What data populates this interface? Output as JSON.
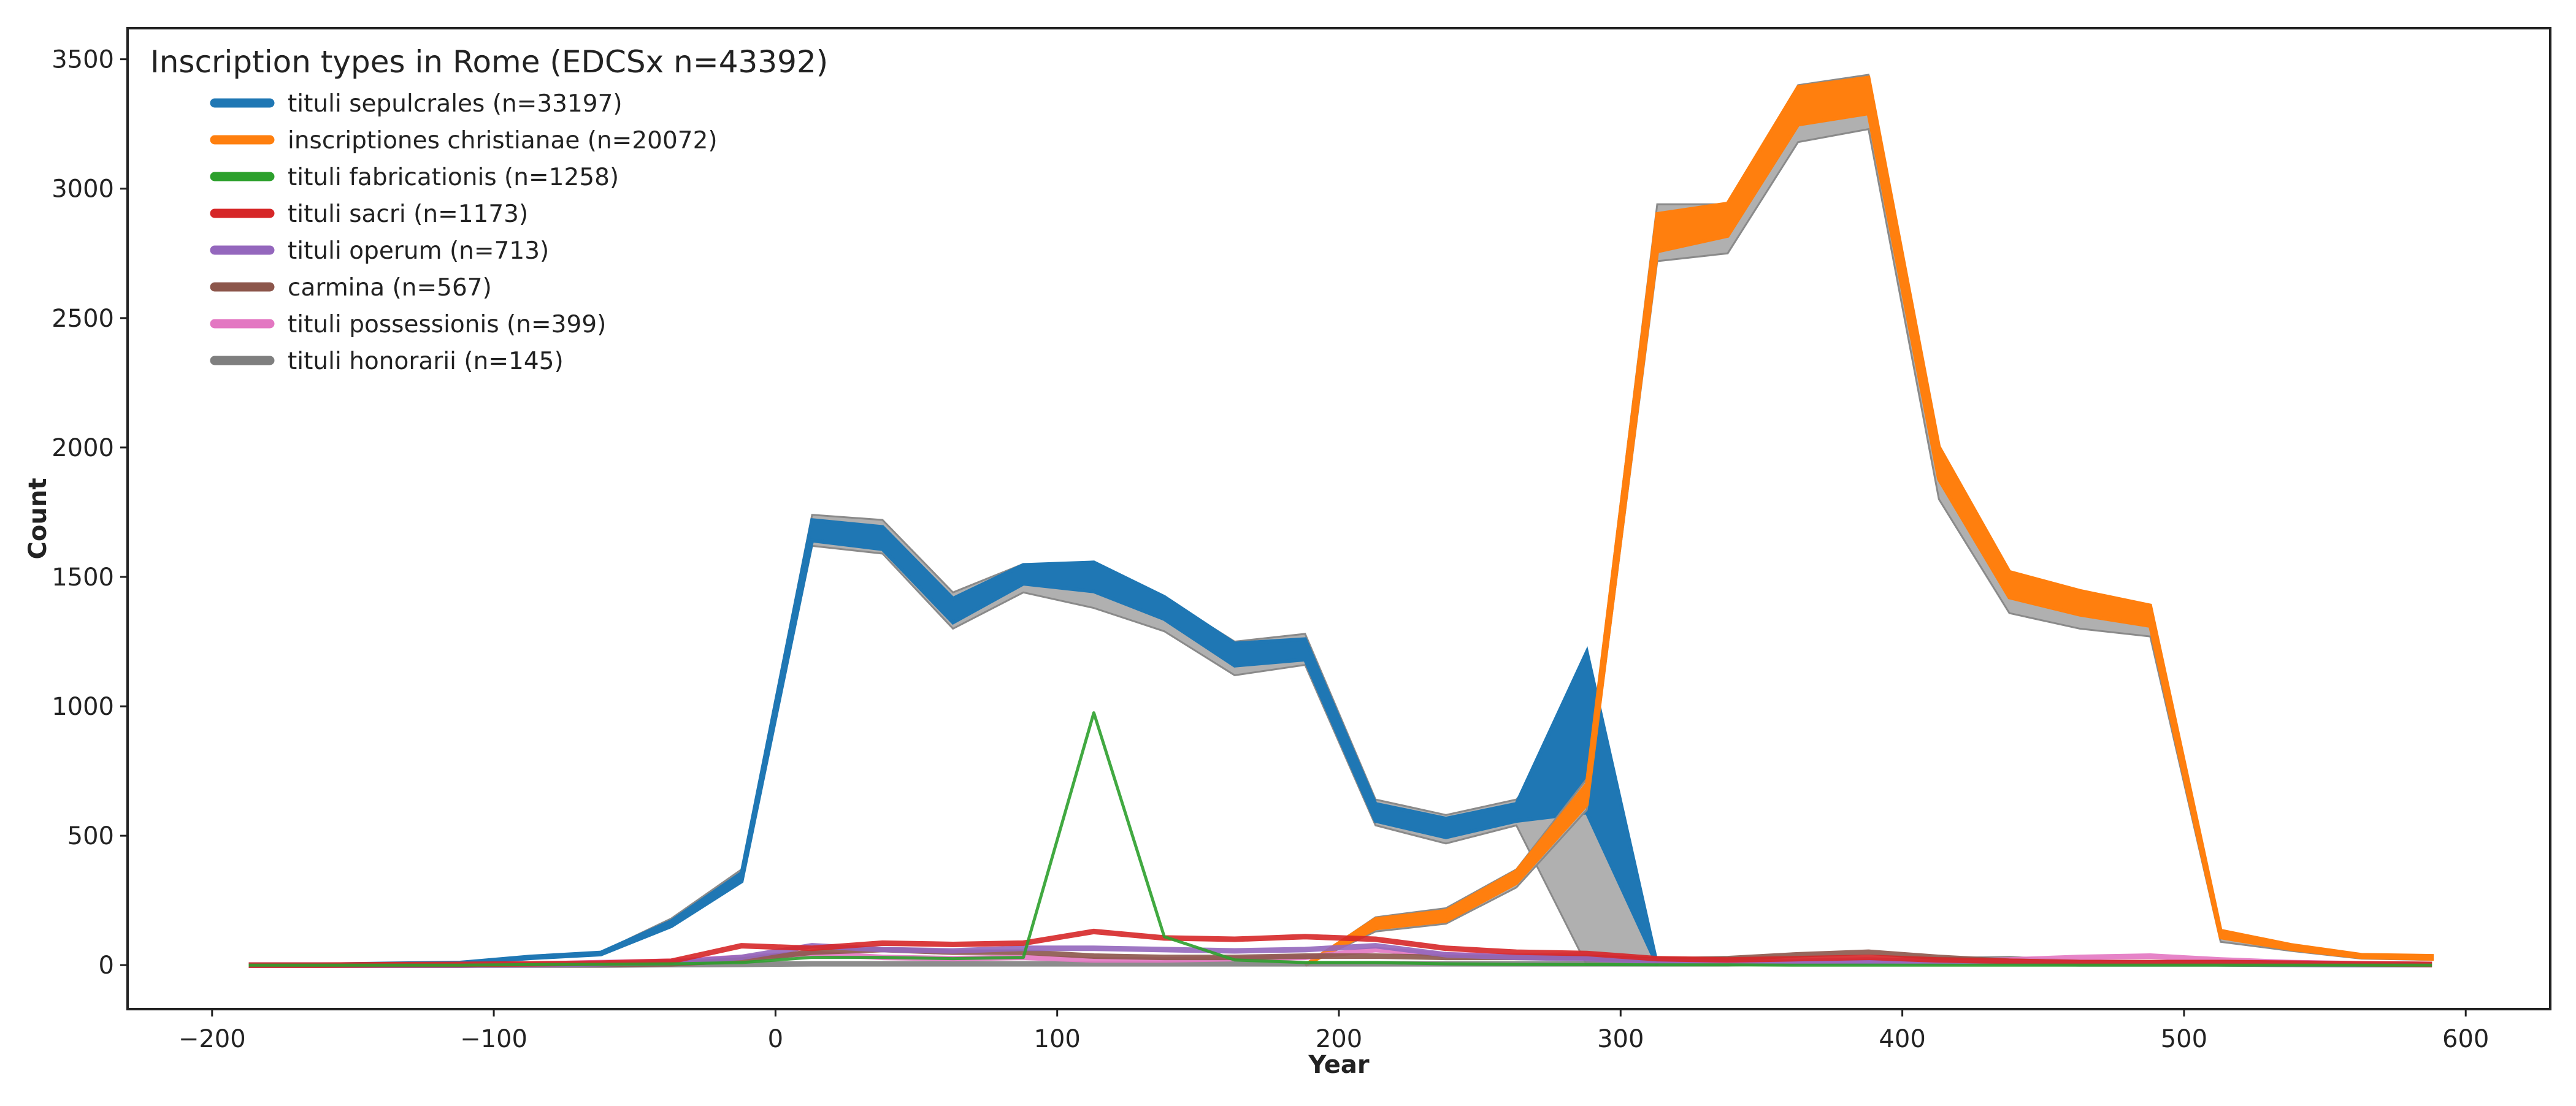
{
  "chart_data": {
    "type": "line",
    "title": "",
    "xlabel": "Year",
    "ylabel": "Count",
    "xlim": [
      -230,
      630
    ],
    "ylim": [
      -170,
      3620
    ],
    "xticks": [
      -200,
      -100,
      0,
      100,
      200,
      300,
      400,
      500,
      600
    ],
    "xtick_labels": [
      "−200",
      "−100",
      "0",
      "100",
      "200",
      "300",
      "400",
      "500",
      "600"
    ],
    "yticks": [
      0,
      500,
      1000,
      1500,
      2000,
      2500,
      3000,
      3500
    ],
    "ytick_labels": [
      "0",
      "500",
      "1000",
      "1500",
      "2000",
      "2500",
      "3000",
      "3500"
    ],
    "grid": false,
    "legend": {
      "title": "Inscription types in Rome (EDCSx n=43392)",
      "placement": "top-left"
    },
    "x": [
      -187,
      -162,
      -137,
      -112,
      -87,
      -62,
      -37,
      -12,
      13,
      38,
      63,
      88,
      113,
      138,
      163,
      188,
      213,
      238,
      263,
      288,
      313,
      338,
      363,
      388,
      413,
      438,
      463,
      488,
      513,
      538,
      563,
      588
    ],
    "series": [
      {
        "name": "tituli sepulcrales (n=33197)",
        "color": "#1f77b4",
        "style": "band",
        "values": [
          0,
          2,
          5,
          8,
          30,
          45,
          160,
          340,
          1680,
          1650,
          1370,
          1510,
          1500,
          1380,
          1200,
          1220,
          590,
          530,
          590,
          900,
          0,
          0,
          0,
          0,
          0,
          0,
          0,
          0,
          0,
          0,
          0,
          0
        ],
        "band_lower": [
          0,
          0,
          3,
          5,
          25,
          38,
          150,
          320,
          1620,
          1590,
          1300,
          1440,
          1380,
          1290,
          1120,
          1160,
          540,
          470,
          540,
          0,
          0,
          0,
          0,
          0,
          0,
          0,
          0,
          0,
          0,
          0,
          0,
          0
        ],
        "band_upper": [
          0,
          3,
          8,
          11,
          35,
          50,
          180,
          370,
          1740,
          1720,
          1440,
          1550,
          1550,
          1420,
          1250,
          1280,
          640,
          580,
          640,
          940,
          0,
          0,
          0,
          0,
          0,
          0,
          0,
          0,
          0,
          0,
          0,
          0
        ]
      },
      {
        "name": "inscriptiones christianae (n=20072)",
        "color": "#ff7f0e",
        "style": "band",
        "values": [
          0,
          0,
          0,
          0,
          0,
          0,
          0,
          0,
          0,
          0,
          0,
          0,
          0,
          0,
          0,
          0,
          160,
          190,
          340,
          660,
          2830,
          2880,
          3320,
          3360,
          1940,
          1470,
          1400,
          1350,
          120,
          70,
          35,
          30
        ],
        "band_lower": [
          0,
          0,
          0,
          0,
          0,
          0,
          0,
          0,
          0,
          0,
          0,
          0,
          0,
          0,
          0,
          0,
          130,
          160,
          300,
          600,
          2720,
          2750,
          3180,
          3230,
          1800,
          1360,
          1300,
          1270,
          90,
          55,
          25,
          20
        ],
        "band_upper": [
          0,
          0,
          0,
          0,
          0,
          0,
          0,
          0,
          0,
          0,
          0,
          0,
          0,
          0,
          0,
          0,
          185,
          220,
          370,
          720,
          2940,
          2940,
          3400,
          3440,
          1990,
          1510,
          1440,
          1390,
          130,
          80,
          40,
          38
        ]
      },
      {
        "name": "tituli fabricationis (n=1258)",
        "color": "#2ca02c",
        "style": "line",
        "values": [
          0,
          0,
          0,
          0,
          2,
          3,
          5,
          10,
          30,
          30,
          25,
          30,
          975,
          110,
          20,
          10,
          10,
          5,
          3,
          2,
          1,
          1,
          0,
          0,
          0,
          0,
          0,
          0,
          0,
          0,
          0,
          0
        ]
      },
      {
        "name": "tituli sacri (n=1173)",
        "color": "#d62728",
        "style": "line",
        "values": [
          0,
          0,
          2,
          3,
          5,
          8,
          15,
          75,
          65,
          85,
          80,
          85,
          130,
          105,
          100,
          110,
          100,
          65,
          50,
          45,
          25,
          20,
          25,
          30,
          20,
          15,
          10,
          10,
          10,
          8,
          5,
          3
        ]
      },
      {
        "name": "tituli operum (n=713)",
        "color": "#9467bd",
        "style": "line",
        "values": [
          0,
          0,
          0,
          0,
          2,
          5,
          10,
          30,
          75,
          60,
          55,
          65,
          65,
          60,
          55,
          60,
          75,
          40,
          30,
          25,
          15,
          10,
          10,
          10,
          10,
          10,
          5,
          5,
          5,
          3,
          2,
          2
        ]
      },
      {
        "name": "carmina (n=567)",
        "color": "#8c564b",
        "style": "line",
        "values": [
          0,
          0,
          0,
          0,
          2,
          3,
          5,
          20,
          50,
          60,
          50,
          50,
          35,
          30,
          30,
          35,
          35,
          30,
          30,
          30,
          20,
          25,
          40,
          50,
          30,
          15,
          10,
          10,
          10,
          5,
          3,
          2
        ]
      },
      {
        "name": "tituli possessionis (n=399)",
        "color": "#e377c2",
        "style": "line",
        "values": [
          0,
          0,
          0,
          0,
          3,
          10,
          15,
          30,
          45,
          30,
          25,
          30,
          20,
          20,
          25,
          30,
          60,
          40,
          35,
          40,
          20,
          15,
          15,
          20,
          15,
          20,
          30,
          35,
          20,
          10,
          5,
          3
        ]
      },
      {
        "name": "tituli honorarii (n=145)",
        "color": "#7f7f7f",
        "style": "line",
        "values": [
          0,
          0,
          0,
          0,
          0,
          0,
          2,
          3,
          5,
          5,
          5,
          5,
          5,
          5,
          5,
          5,
          5,
          5,
          5,
          5,
          5,
          5,
          10,
          15,
          20,
          25,
          10,
          10,
          5,
          3,
          2,
          2
        ]
      }
    ]
  }
}
